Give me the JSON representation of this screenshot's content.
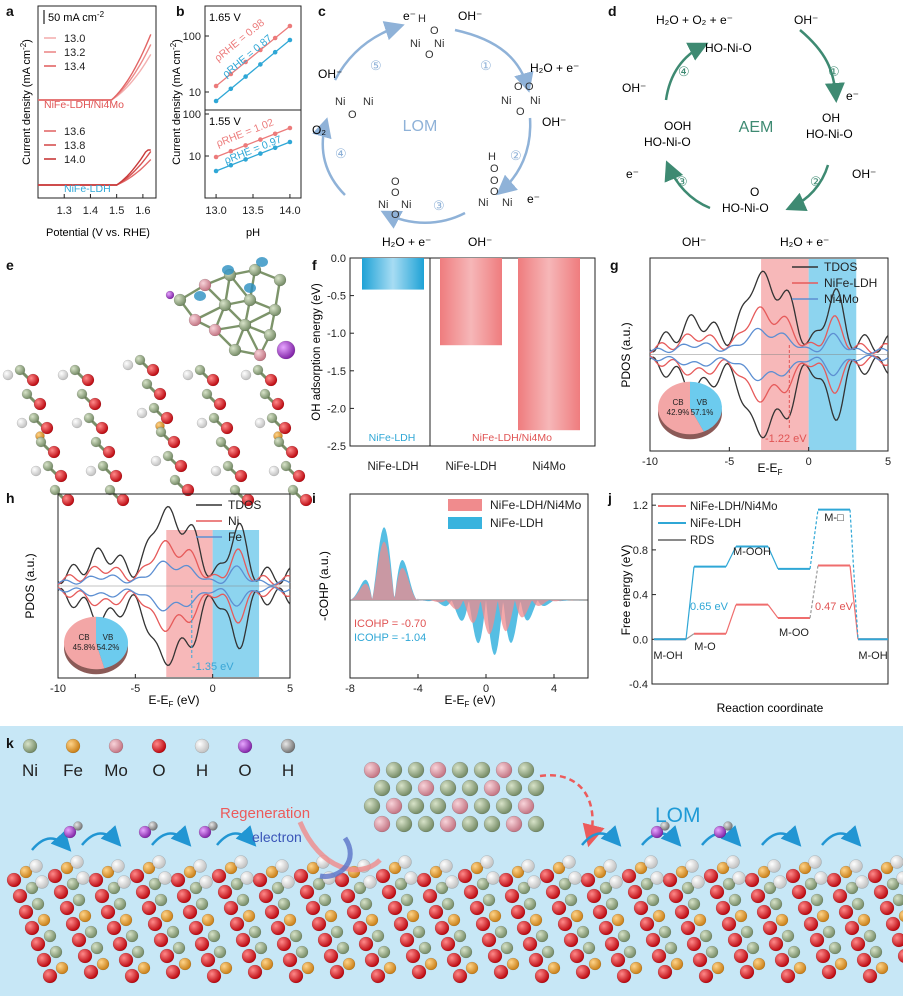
{
  "panels": {
    "a": {
      "letter": "a",
      "scale_label": "50 mA cm",
      "scale_sup": "-2",
      "ylabel": "Current density (mA cm",
      "ylabel_sup": "-2",
      "ylabel_end": ")",
      "xlabel": "Potential (V vs. RHE)",
      "xticks": [
        "1.3",
        "1.4",
        "1.5",
        "1.6"
      ],
      "top_series_name": "NiFe-LDH/Ni4Mo",
      "bottom_series_name": "NiFe-LDH",
      "top_ph": [
        "13.0",
        "13.2",
        "13.4"
      ],
      "bottom_ph": [
        "13.6",
        "13.8",
        "14.0"
      ],
      "top_color": "#e8716f",
      "bottom_color": "#3aaed8"
    },
    "b": {
      "letter": "b",
      "ylabel": "Current density (mA cm",
      "ylabel_sup": "-2",
      "ylabel_end": ")",
      "xlabel": "pH",
      "xticks": [
        "13.0",
        "13.5",
        "14.0"
      ],
      "top_potential": "1.65 V",
      "bottom_potential": "1.55 V",
      "top_yticks": [
        "100",
        "10"
      ],
      "bottom_yticks": [
        "100",
        "10"
      ],
      "rho_labels": {
        "top_red": "ρRHE = 0.98",
        "top_blue": "ρRHE = 0.87",
        "bottom_red": "ρRHE = 1.02",
        "bottom_blue": "ρRHE = 0.97"
      }
    },
    "c": {
      "letter": "c",
      "center_label": "LOM",
      "color": "#8fb2d8",
      "species": [
        "e⁻",
        "OH⁻",
        "H₂O + e⁻",
        "OH⁻",
        "e⁻",
        "OH⁻",
        "H₂O + e⁻",
        "O₂",
        "OH⁻"
      ],
      "steps": [
        "①",
        "②",
        "③",
        "④",
        "⑤"
      ]
    },
    "d": {
      "letter": "d",
      "center_label": "AEM",
      "color": "#3e8a72",
      "species": [
        "H₂O + O₂ + e⁻",
        "OH⁻",
        "e⁻",
        "OH⁻",
        "H₂O + e⁻",
        "OH⁻",
        "e⁻",
        "OH⁻"
      ],
      "intermediates": [
        "HO-Ni-O",
        "OH",
        "HO-Ni-O",
        "O",
        "HO-Ni-O",
        "OOH",
        "HO-Ni-O"
      ],
      "steps": [
        "①",
        "②",
        "③",
        "④"
      ]
    },
    "e": {
      "letter": "e"
    },
    "f": {
      "letter": "f",
      "ylabel": "OH adsorption energy (eV)",
      "left_group_label": "NiFe-LDH",
      "right_group_label": "NiFe-LDH/Ni4Mo"
    },
    "g": {
      "letter": "g",
      "ylabel": "PDOS (a.u.)",
      "xlabel": "E-E",
      "xlabel_sub": "F",
      "legend": [
        "TDOS",
        "NiFe-LDH",
        "Ni4Mo"
      ],
      "annotation": "-1.22 eV",
      "pie": {
        "cb_label": "CB",
        "cb_value": "42.9%",
        "vb_label": "VB",
        "vb_value": "57.1%",
        "cb_frac": 0.429
      }
    },
    "h": {
      "letter": "h",
      "ylabel": "PDOS (a.u.)",
      "xlabel": "E-E",
      "xlabel_sub": "F",
      "xlabel_end": " (eV)",
      "legend": [
        "TDOS",
        "Ni",
        "Fe"
      ],
      "annotation": "-1.35 eV",
      "pie": {
        "cb_label": "CB",
        "cb_value": "45.8%",
        "vb_label": "VB",
        "vb_value": "54.2%",
        "cb_frac": 0.458
      }
    },
    "i": {
      "letter": "i",
      "ylabel": "-COHP (a.u.)",
      "xlabel": "E-E",
      "xlabel_sub": "F",
      "xlabel_end": " (eV)",
      "legend": [
        "NiFe-LDH/Ni4Mo",
        "NiFe-LDH"
      ],
      "icohp_red": "ICOHP = -0.70",
      "icohp_blue": "ICOHP = -1.04"
    },
    "j": {
      "letter": "j",
      "ylabel": "Free energy (eV)",
      "xlabel": "Reaction coordinate",
      "legend": [
        "NiFe-LDH/Ni4Mo",
        "NiFe-LDH",
        "RDS"
      ],
      "state_labels": [
        "M-OH",
        "M-O",
        "M-OOH",
        "M-OO",
        "M-□",
        "M-OH"
      ],
      "annotation_blue": "0.65 eV",
      "annotation_red": "0.47 eV"
    },
    "k": {
      "letter": "k",
      "atom_legend": [
        {
          "name": "Ni",
          "color": "#8a9f76"
        },
        {
          "name": "Fe",
          "color": "#e29a2e"
        },
        {
          "name": "Mo",
          "color": "#d98a9a"
        },
        {
          "name": "O",
          "color": "#d5141b"
        },
        {
          "name": "H",
          "color": "#ffffff"
        },
        {
          "name": "O",
          "color": "#a23cc8"
        },
        {
          "name": "H",
          "color": "#8a8a8a"
        }
      ],
      "regeneration_label": "Regeneration",
      "electron_label": "electron",
      "lom_label": "LOM"
    }
  },
  "chart_data": [
    {
      "panel": "f",
      "type": "bar",
      "categories": [
        "NiFe-LDH",
        "NiFe-LDH",
        "Ni4Mo"
      ],
      "values": [
        -0.42,
        -1.16,
        -2.29
      ],
      "colors": [
        "#41b2dc",
        "#f0898b",
        "#f0898b"
      ],
      "ylabel": "OH adsorption energy (eV)",
      "ylim": [
        -2.5,
        0.0
      ],
      "yticks": [
        0.0,
        -0.5,
        -1.0,
        -1.5,
        -2.0,
        -2.5
      ]
    },
    {
      "panel": "j",
      "type": "line",
      "categories": [
        "M-OH",
        "M-O",
        "M-OOH",
        "M-OO",
        "M-□",
        "M-OH"
      ],
      "series": [
        {
          "name": "NiFe-LDH/Ni4Mo",
          "values": [
            0.0,
            0.05,
            0.31,
            0.19,
            0.66,
            0.0
          ],
          "color": "#ef6d6d"
        },
        {
          "name": "NiFe-LDH",
          "values": [
            0.0,
            0.65,
            0.83,
            0.63,
            1.16,
            0.0
          ],
          "color": "#2fa7d6"
        }
      ],
      "ylabel": "Free energy (eV)",
      "xlabel": "Reaction coordinate",
      "ylim": [
        -0.4,
        1.3
      ],
      "yticks": [
        -0.4,
        0.0,
        0.4,
        0.8,
        1.2
      ]
    },
    {
      "panel": "g",
      "type": "line",
      "xlabel": "E-EF (eV)",
      "ylabel": "PDOS (a.u.)",
      "xlim": [
        -10,
        5
      ],
      "xticks": [
        -10,
        -5,
        0,
        5
      ],
      "series": [
        {
          "name": "TDOS",
          "color": "#333333"
        },
        {
          "name": "NiFe-LDH",
          "color": "#e65a5a"
        },
        {
          "name": "Ni4Mo",
          "color": "#5d8fd2"
        }
      ],
      "vb_window": [
        -3,
        0
      ],
      "cb_window": [
        0,
        3
      ],
      "band_center": -1.22
    },
    {
      "panel": "h",
      "type": "line",
      "xlabel": "E-EF (eV)",
      "ylabel": "PDOS (a.u.)",
      "xlim": [
        -10,
        5
      ],
      "xticks": [
        -10,
        -5,
        0,
        5
      ],
      "series": [
        {
          "name": "TDOS",
          "color": "#333333"
        },
        {
          "name": "Ni",
          "color": "#e65a5a"
        },
        {
          "name": "Fe",
          "color": "#5d8fd2"
        }
      ],
      "vb_window": [
        -3,
        0
      ],
      "cb_window": [
        0,
        3
      ],
      "band_center": -1.35
    },
    {
      "panel": "i",
      "type": "area",
      "xlabel": "E-EF (eV)",
      "ylabel": "-COHP (a.u.)",
      "xlim": [
        -8,
        6
      ],
      "xticks": [
        -8,
        -4,
        0,
        4
      ],
      "series": [
        {
          "name": "NiFe-LDH/Ni4Mo",
          "color": "#f08b8d"
        },
        {
          "name": "NiFe-LDH",
          "color": "#38b3de"
        }
      ],
      "icohp": {
        "NiFe-LDH/Ni4Mo": -0.7,
        "NiFe-LDH": -1.04
      }
    }
  ]
}
